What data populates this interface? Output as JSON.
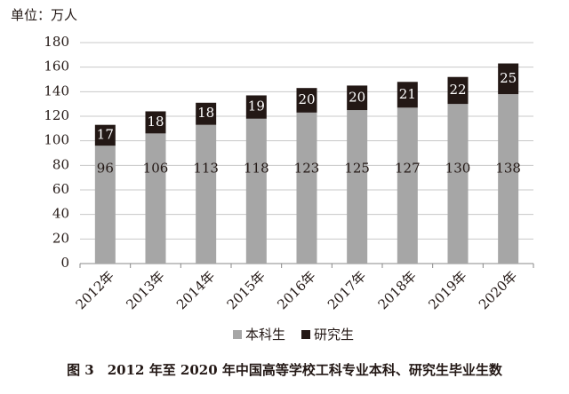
{
  "chart_data": {
    "type": "stacked_bar",
    "title": "图 3　2012 年至 2020 年中国高等学校工科专业本科、研究生毕业生数",
    "y_label": "单位：万人",
    "categories": [
      "2012年",
      "2013年",
      "2014年",
      "2015年",
      "2016年",
      "2017年",
      "2018年",
      "2019年",
      "2020年"
    ],
    "series": [
      {
        "name": "本科生",
        "color": "#a6a6a6",
        "values": [
          96,
          106,
          113,
          118,
          123,
          125,
          127,
          130,
          138
        ]
      },
      {
        "name": "研究生",
        "color": "#231815",
        "values": [
          17,
          18,
          18,
          19,
          20,
          20,
          21,
          22,
          25
        ]
      }
    ],
    "ylim": [
      0,
      180
    ],
    "yticks": [
      0,
      20,
      40,
      60,
      80,
      100,
      120,
      140,
      160,
      180
    ],
    "grid": true,
    "legend": "bottom"
  }
}
